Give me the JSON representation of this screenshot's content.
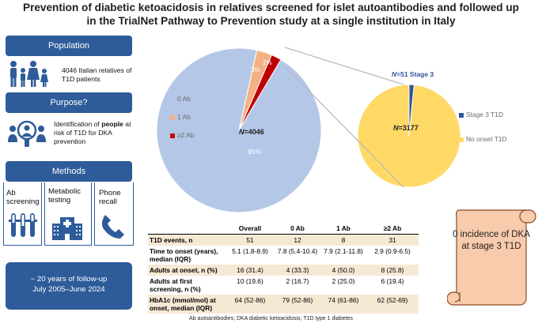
{
  "title_line1": "Prevention of diabetic ketoacidosis in relatives screened  for islet autoantibodies and followed up",
  "title_line2": "in the TrialNet Pathway to Prevention study at a single institution in Italy",
  "population": {
    "header": "Population",
    "text": "4046 Italian relatives of T1D patients"
  },
  "purpose": {
    "header": "Purpose?",
    "text_a": "Identification of ",
    "text_bold": "people",
    "text_b": " at risk of T1D for DKA prevention"
  },
  "methods": {
    "header": "Methods",
    "items": [
      "Ab screening",
      "Metabolic testing",
      "Phone recall"
    ]
  },
  "followup": {
    "line1": "~ 20 years of follow-up",
    "line2": "July 2005–June 2024"
  },
  "colors": {
    "navy": "#2e5c9a",
    "blue_slice": "#b4c7e7",
    "orange_slice": "#f4b183",
    "red_slice": "#c00000",
    "yellow_slice": "#ffd966",
    "stage3": "#2f5597",
    "scroll": "#f8cbad"
  },
  "chart_data": [
    {
      "type": "pie",
      "title": "",
      "slices": [
        {
          "label": "0 Ab",
          "value": 95,
          "display": "95%"
        },
        {
          "label": "1 Ab",
          "value": 3,
          "display": "3%"
        },
        {
          "label": "≥2 Ab",
          "value": 2,
          "display": "2%"
        }
      ],
      "legend": [
        "0 Ab",
        "1 Ab",
        "≥2 Ab"
      ],
      "center_label_n": "N",
      "center_label_v": "=4046"
    },
    {
      "type": "pie",
      "title": "",
      "slices": [
        {
          "label": "Stage 3 T1D",
          "value": 51
        },
        {
          "label": "No onset T1D",
          "value": 3177
        }
      ],
      "legend": [
        "Stage 3 T1D",
        "No onset T1D"
      ],
      "stage3_label_n": "N",
      "stage3_label_v": "=51 Stage 3",
      "center_label_n": "N",
      "center_label_v": "=3177"
    }
  ],
  "table": {
    "headers": [
      "",
      "Overall",
      "0 Ab",
      "1 Ab",
      "≥2 Ab"
    ],
    "rows": [
      {
        "label": "T1D events, n",
        "cells": [
          "51",
          "12",
          "8",
          "31"
        ]
      },
      {
        "label": "Time to onset (years), median (IQR)",
        "cells": [
          "5.1 (1.8-8.9)",
          "7.8 (5.4-10.4)",
          "7.9 (2.1-11.8)",
          "2.9 (0.9-6.5)"
        ]
      },
      {
        "label": "Adults at onset, n (%)",
        "cells": [
          "16 (31.4)",
          "4 (33.3)",
          "4 (50.0)",
          "8 (25.8)"
        ]
      },
      {
        "label": "Adults at first screening, n (%)",
        "cells": [
          "10 (19.6)",
          "2 (16.7)",
          "2 (25.0)",
          "6 (19.4)"
        ]
      },
      {
        "label": "HbA1c (mmol/mol) at onset, median (IQR)",
        "cells": [
          "64 (52-86)",
          "79 (52-86)",
          "74 (61-86)",
          "62 (52-69)"
        ]
      }
    ]
  },
  "scroll_text": "0 incidence of DKA at stage 3 T1D",
  "footer": "Ab autoantibodies; DKA diabetic ketoacidosis; T1D type 1 diabetes"
}
